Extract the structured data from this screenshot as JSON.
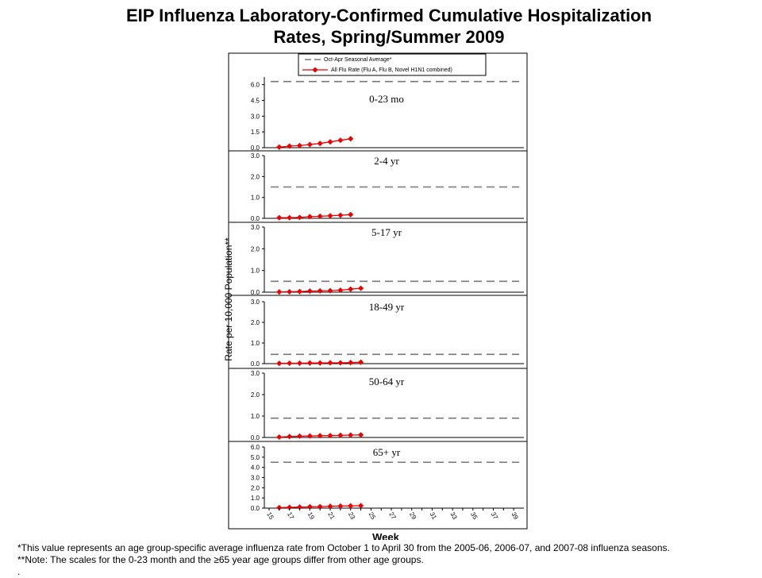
{
  "title": {
    "line1": "EIP Influenza Laboratory-Confirmed Cumulative Hospitalization",
    "line2": "Rates, Spring/Summer 2009"
  },
  "footnotes": {
    "note1": "*This value represents an age group-specific average influenza rate from October 1 to April 30 from the 2005-06, 2006-07, and 2007-08 influenza seasons.",
    "note2": "**Note: The scales for the 0-23 month and the ≥65 year age groups differ from other age groups.",
    "note3": "."
  },
  "colors": {
    "series": "#ee0000",
    "average_line": "#777777",
    "axis": "#000000"
  },
  "chart_data": {
    "type": "line",
    "xlabel": "Week",
    "ylabel": "Rate per 10,000 Population**",
    "legend": {
      "placement": "top",
      "avg_label": "Oct-Apr Seasonal Average*",
      "series_label": "All Flu Rate (Flu A, Flu B, Novel H1N1 combined)"
    },
    "x": [
      15,
      16,
      17,
      18,
      19,
      20,
      21,
      22,
      23,
      24
    ],
    "xlim": [
      15,
      40
    ],
    "xticks": [
      "15",
      "17",
      "19",
      "21",
      "23",
      "25",
      "27",
      "29",
      "31",
      "33",
      "35",
      "37",
      "39"
    ],
    "panels": [
      {
        "label": "0-23 mo",
        "ylim": [
          0,
          6.5
        ],
        "yticks": [
          "0.0",
          "1.5",
          "3.0",
          "4.5",
          "6.0"
        ],
        "average": 6.3,
        "x": [
          16,
          17,
          18,
          19,
          20,
          21,
          22,
          23
        ],
        "values": [
          0.05,
          0.15,
          0.2,
          0.3,
          0.4,
          0.55,
          0.7,
          0.85
        ]
      },
      {
        "label": "2-4 yr",
        "ylim": [
          0,
          3.0
        ],
        "yticks": [
          "0.0",
          "1.0",
          "2.0",
          "3.0"
        ],
        "average": 1.5,
        "x": [
          16,
          17,
          18,
          19,
          20,
          21,
          22,
          23
        ],
        "values": [
          0.03,
          0.03,
          0.04,
          0.08,
          0.1,
          0.12,
          0.15,
          0.18
        ]
      },
      {
        "label": "5-17 yr",
        "ylim": [
          0,
          3.0
        ],
        "yticks": [
          "0.0",
          "1.0",
          "2.0",
          "3.0"
        ],
        "average": 0.5,
        "x": [
          16,
          17,
          18,
          19,
          20,
          21,
          22,
          23,
          24
        ],
        "values": [
          0.01,
          0.02,
          0.03,
          0.05,
          0.06,
          0.07,
          0.09,
          0.14,
          0.18
        ]
      },
      {
        "label": "18-49 yr",
        "ylim": [
          0,
          3.0
        ],
        "yticks": [
          "0.0",
          "1.0",
          "2.0",
          "3.0"
        ],
        "average": 0.45,
        "x": [
          16,
          17,
          18,
          19,
          20,
          21,
          22,
          23,
          24
        ],
        "values": [
          0.01,
          0.02,
          0.02,
          0.03,
          0.03,
          0.04,
          0.04,
          0.05,
          0.07
        ]
      },
      {
        "label": "50-64 yr",
        "ylim": [
          0,
          3.0
        ],
        "yticks": [
          "0.0",
          "1.0",
          "2.0",
          "3.0"
        ],
        "average": 0.9,
        "x": [
          16,
          17,
          18,
          19,
          20,
          21,
          22,
          23,
          24
        ],
        "values": [
          0.02,
          0.04,
          0.06,
          0.07,
          0.08,
          0.09,
          0.1,
          0.11,
          0.12
        ]
      },
      {
        "label": "65+ yr",
        "ylim": [
          0,
          6.0
        ],
        "yticks": [
          "0.0",
          "1.0",
          "2.0",
          "3.0",
          "4.0",
          "5.0",
          "6.0"
        ],
        "average": 4.5,
        "x": [
          16,
          17,
          18,
          19,
          20,
          21,
          22,
          23,
          24
        ],
        "values": [
          0.05,
          0.08,
          0.1,
          0.13,
          0.15,
          0.18,
          0.2,
          0.22,
          0.24
        ]
      }
    ]
  }
}
